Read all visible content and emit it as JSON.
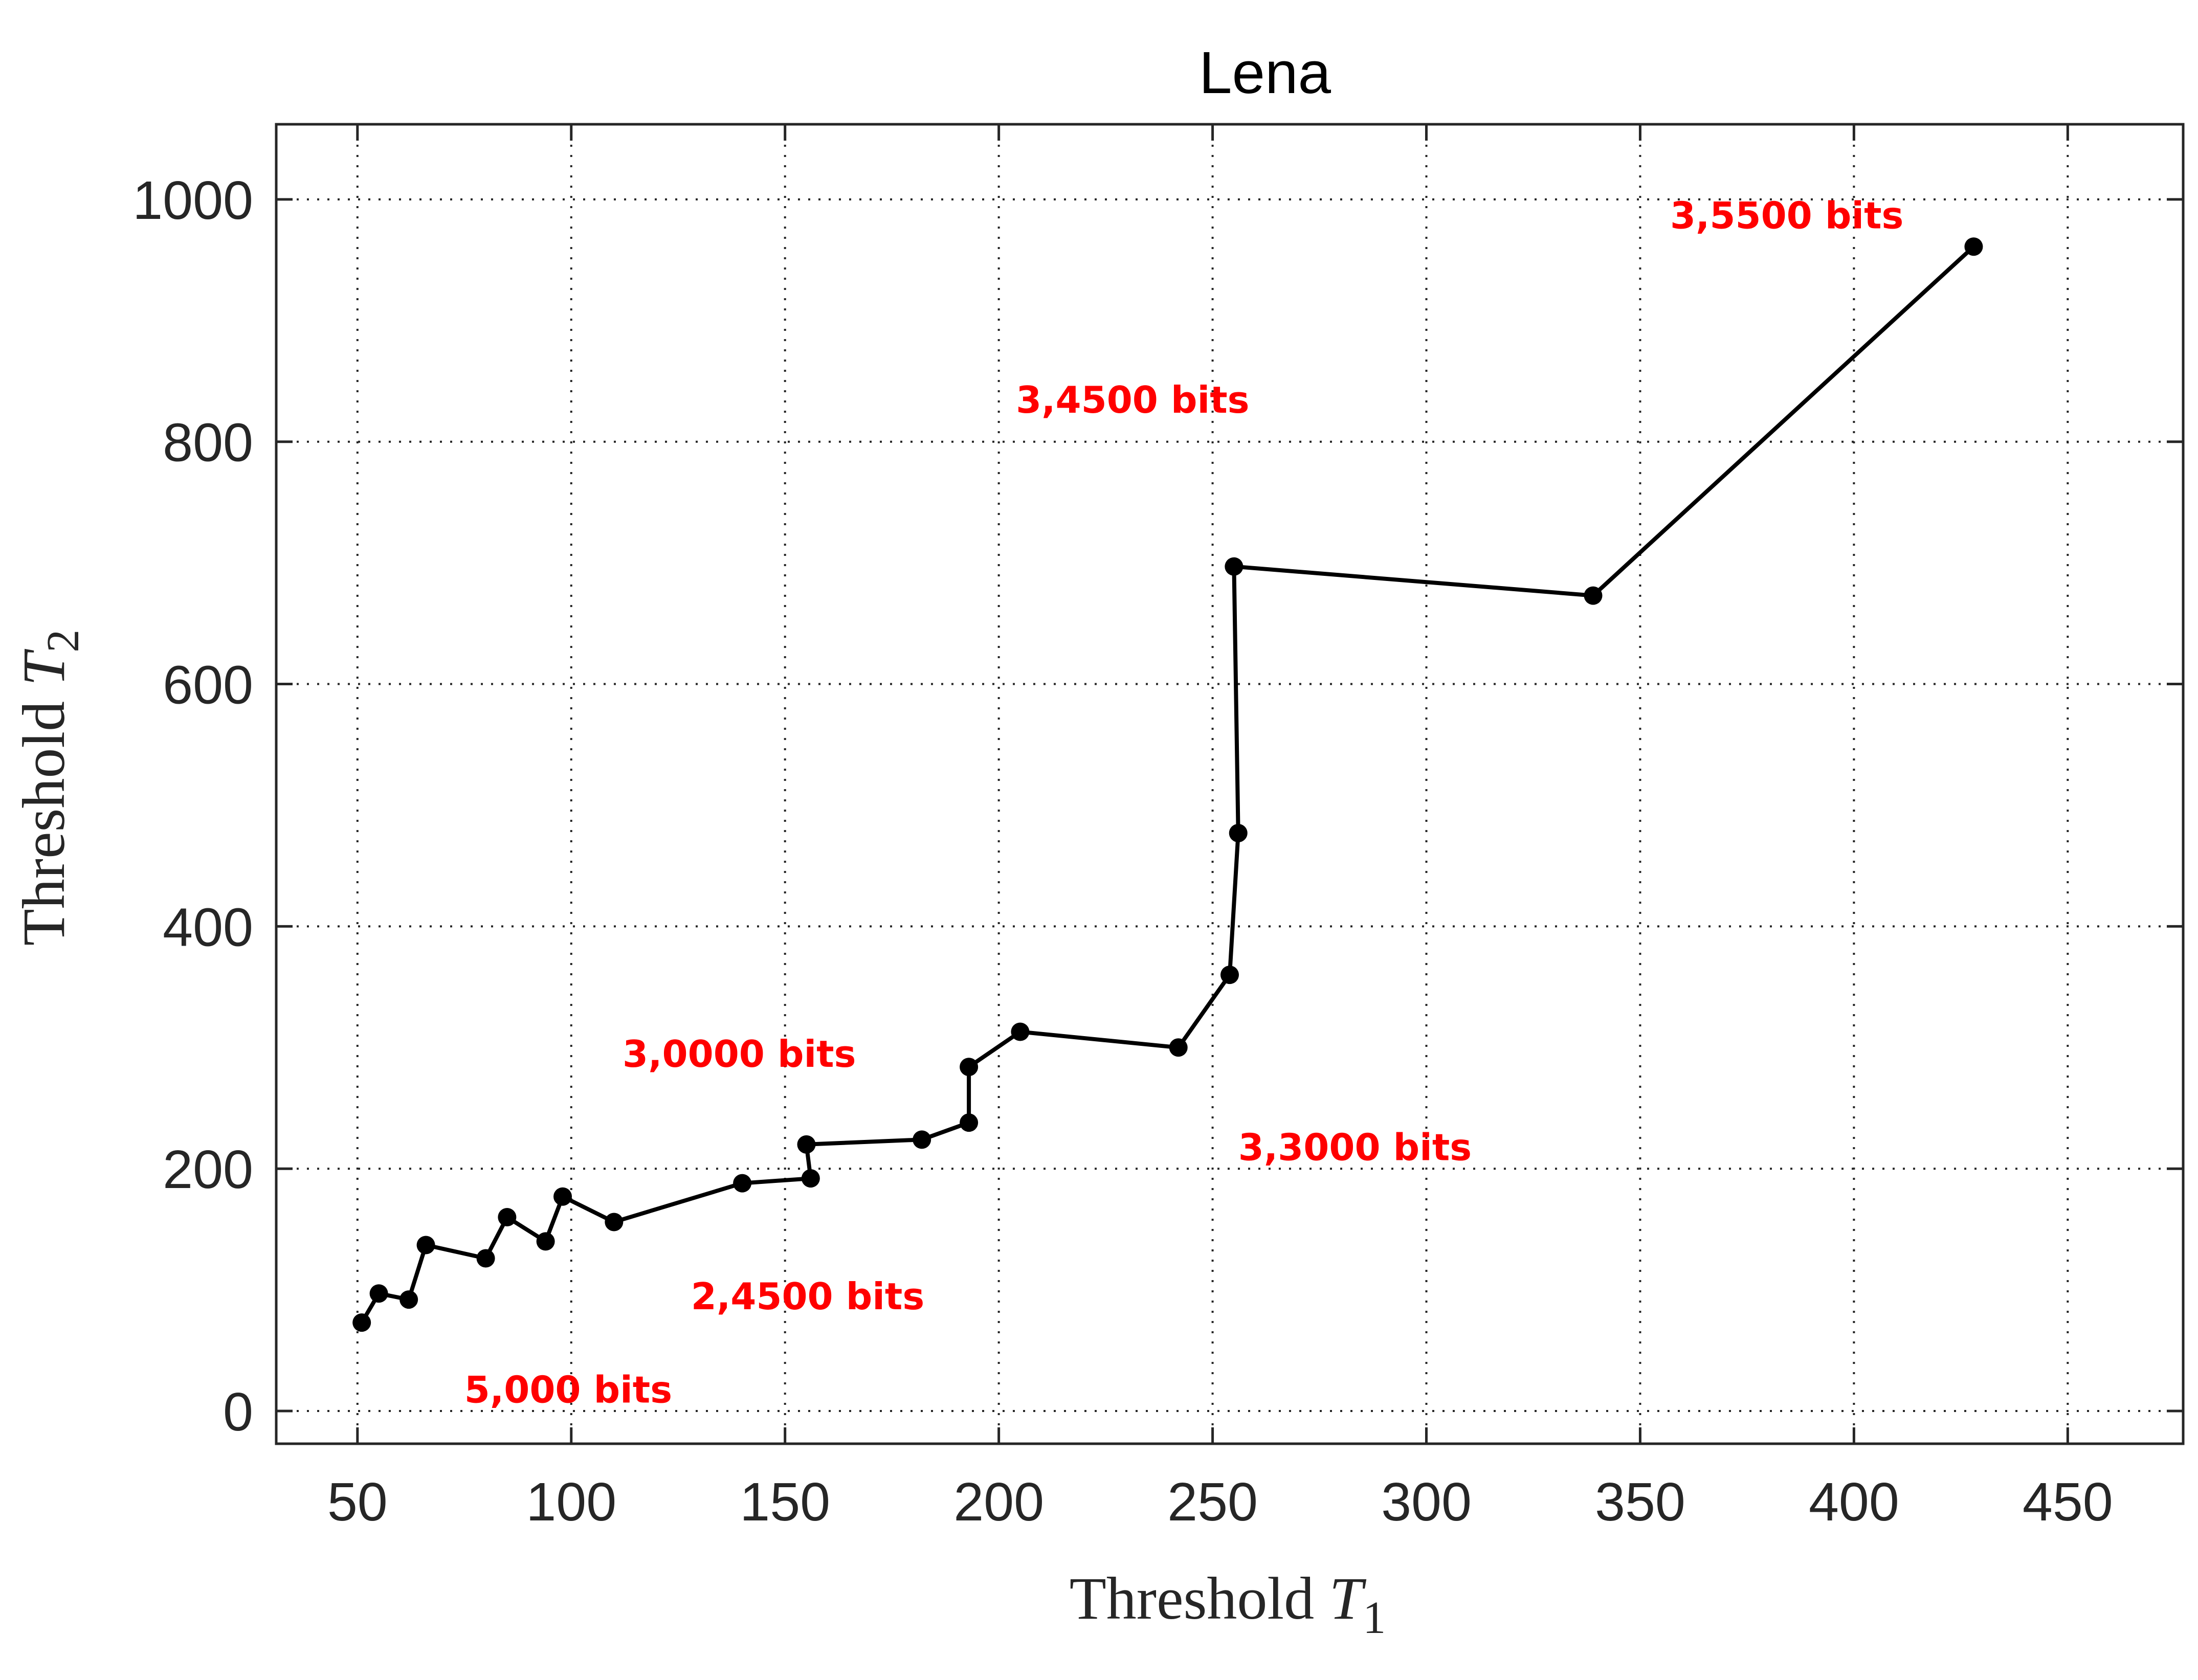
{
  "chart_data": {
    "type": "line",
    "title": "Lena",
    "xlabel": {
      "text": "Threshold ",
      "symbol": "T",
      "subscript": "1"
    },
    "ylabel": {
      "text": "Threshold ",
      "symbol": "T",
      "subscript": "2"
    },
    "xlim": [
      31,
      477
    ],
    "ylim": [
      -27,
      1062
    ],
    "xticks": [
      50,
      100,
      150,
      200,
      250,
      300,
      350,
      400,
      450
    ],
    "yticks": [
      0,
      200,
      400,
      600,
      800,
      1000
    ],
    "grid": true,
    "series": [
      {
        "color": "#000000",
        "marker": "circle",
        "points": [
          [
            51,
            73
          ],
          [
            55,
            97
          ],
          [
            62,
            92
          ],
          [
            66,
            137
          ],
          [
            80,
            126
          ],
          [
            85,
            160
          ],
          [
            94,
            140
          ],
          [
            98,
            177
          ],
          [
            110,
            156
          ],
          [
            140,
            188
          ],
          [
            156,
            192
          ],
          [
            155,
            220
          ],
          [
            182,
            224
          ],
          [
            193,
            238
          ],
          [
            193,
            284
          ],
          [
            205,
            313
          ],
          [
            242,
            300
          ],
          [
            254,
            360
          ],
          [
            256,
            477
          ],
          [
            255,
            697
          ],
          [
            339,
            673
          ],
          [
            428,
            961
          ]
        ]
      }
    ],
    "annotations": [
      {
        "text": "5,000 bits",
        "x": 75,
        "y": 7
      },
      {
        "text": "2,4500 bits",
        "x": 128,
        "y": 84
      },
      {
        "text": "3,0000 bits",
        "x": 112,
        "y": 284
      },
      {
        "text": "3,3000 bits",
        "x": 256,
        "y": 207
      },
      {
        "text": "3,4500 bits",
        "x": 204,
        "y": 824
      },
      {
        "text": "3,5500 bits",
        "x": 357,
        "y": 976
      }
    ]
  }
}
